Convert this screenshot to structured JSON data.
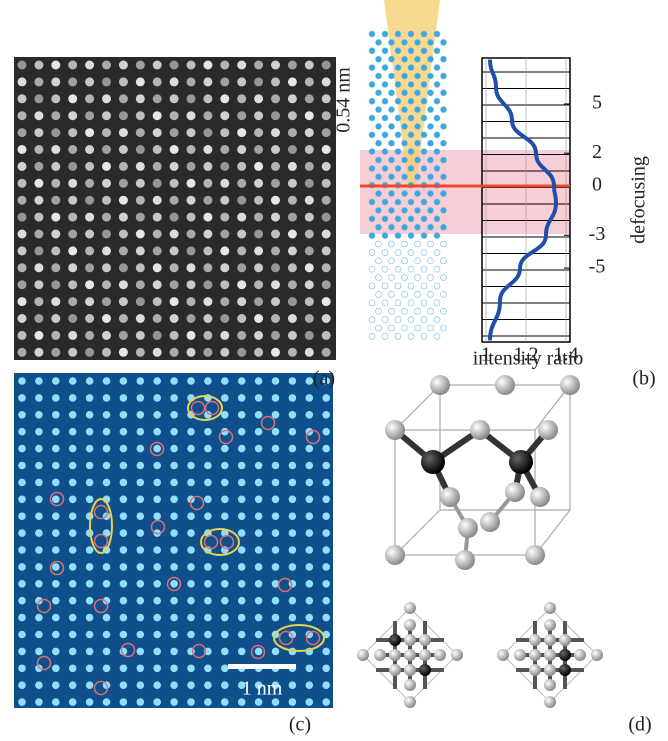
{
  "panels": {
    "a": {
      "label": "(a)"
    },
    "b": {
      "label": "(b)",
      "spacing_label": "0.54 nm",
      "chart_data": {
        "type": "line",
        "x_label": "intensity ratio",
        "y_label": "defocusing",
        "xlim": [
          0.98,
          1.42
        ],
        "ylim": [
          -9.5,
          7.8
        ],
        "xticks": [
          1,
          1.2,
          1.4
        ],
        "yticks": [
          5,
          2,
          0,
          -3,
          -5
        ],
        "series": [
          {
            "color": "#1f4fa8",
            "x": [
              7.7,
              6,
              4,
              2,
              0,
              -1,
              -3,
              -5,
              -7,
              -9.4
            ],
            "values": [
              1.02,
              1.05,
              1.13,
              1.25,
              1.34,
              1.35,
              1.3,
              1.17,
              1.07,
              1.02
            ]
          }
        ]
      }
    },
    "c": {
      "label": "(c)",
      "scale_label": "1 nm"
    },
    "d": {
      "label": "(d)"
    }
  }
}
